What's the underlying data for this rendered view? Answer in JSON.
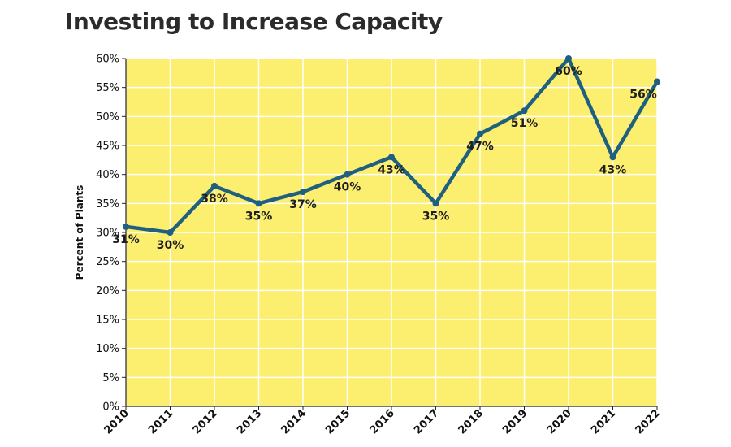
{
  "chart_data": {
    "type": "line",
    "title": "Investing to Increase Capacity",
    "xlabel": "",
    "ylabel": "Percent of Plants",
    "categories": [
      "2010",
      "2011",
      "2012",
      "2013",
      "2014",
      "2015",
      "2016",
      "2017",
      "2018",
      "2019",
      "2020",
      "2021",
      "2022"
    ],
    "series": [
      {
        "values": [
          31,
          30,
          38,
          35,
          37,
          40,
          43,
          35,
          47,
          51,
          60,
          43,
          56
        ]
      }
    ],
    "data_labels": [
      "31%",
      "30%",
      "38%",
      "35%",
      "37%",
      "40%",
      "43%",
      "35%",
      "47%",
      "51%",
      "60%",
      "43%",
      "56%"
    ],
    "ylim": [
      0,
      60
    ],
    "yticks": [
      0,
      5,
      10,
      15,
      20,
      25,
      30,
      35,
      40,
      45,
      50,
      55,
      60
    ],
    "ytick_labels": [
      "0%",
      "5%",
      "10%",
      "15%",
      "20%",
      "25%",
      "30%",
      "35%",
      "40%",
      "45%",
      "50%",
      "55%",
      "60%"
    ],
    "grid": true,
    "legend": "none",
    "colors": {
      "plot_background": "#fcee6e",
      "gridline": "#ffffff",
      "line": "#1f5f80",
      "axis": "#222222"
    }
  }
}
